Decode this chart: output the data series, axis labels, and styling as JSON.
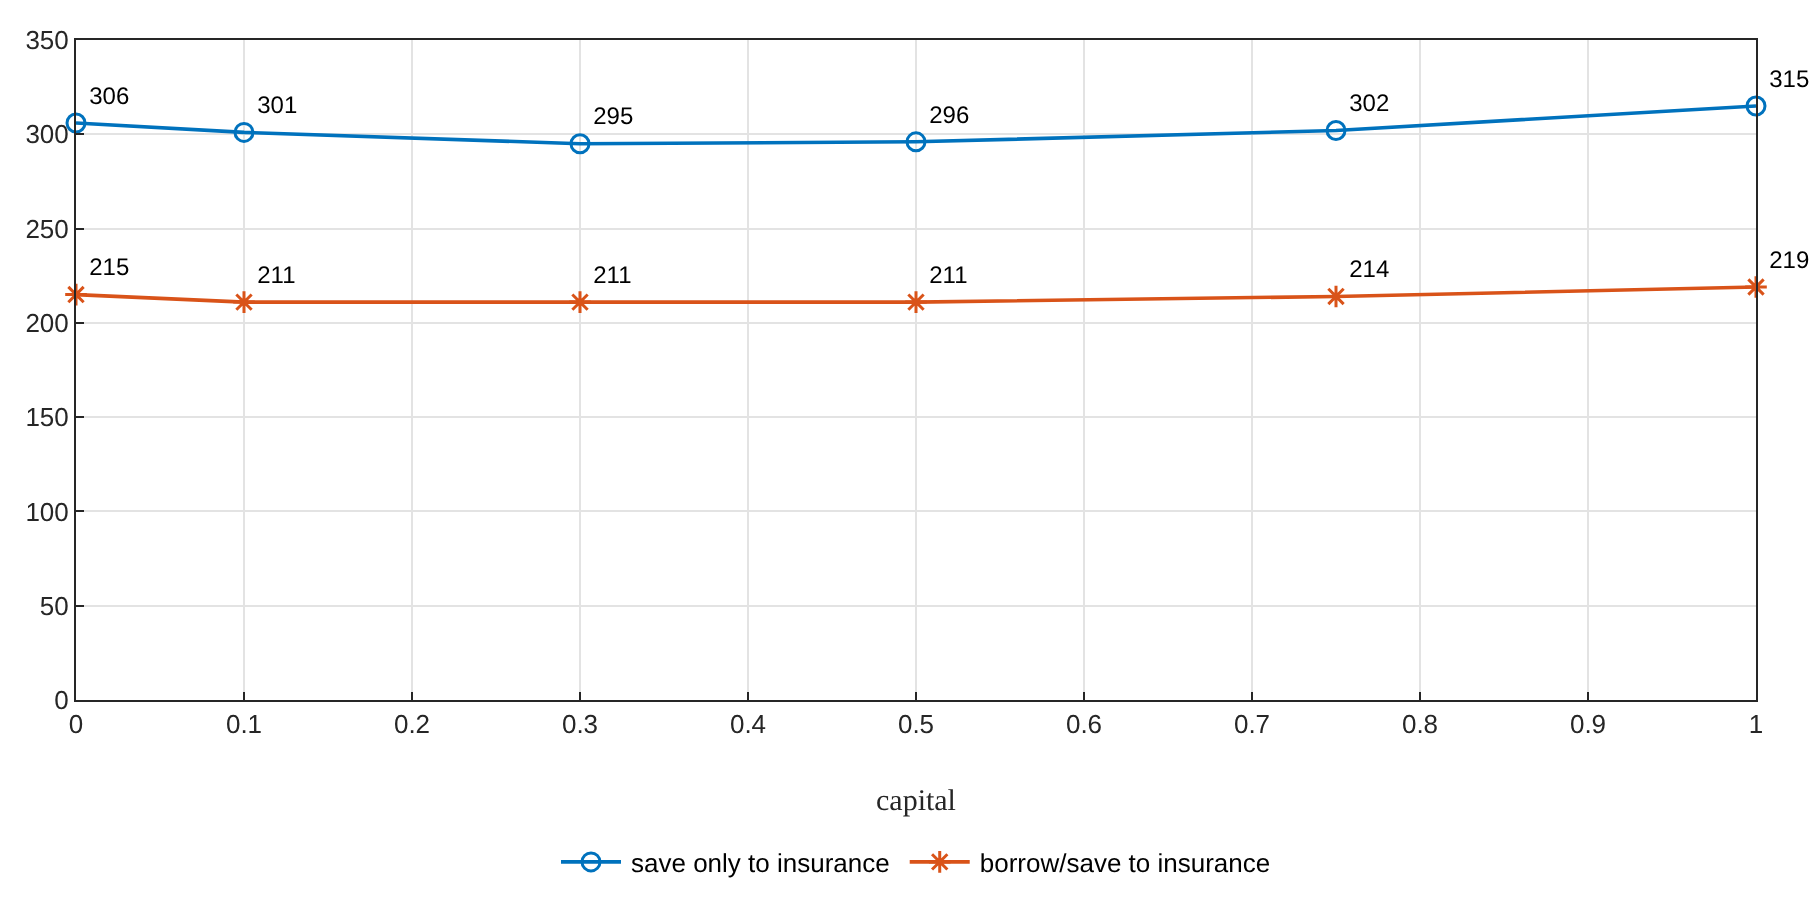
{
  "chart_data": {
    "type": "line",
    "xlabel": "capital",
    "x": [
      0,
      0.1,
      0.3,
      0.5,
      0.75,
      1
    ],
    "series": [
      {
        "name": "save only to insurance",
        "color": "#0072bd",
        "marker": "circle",
        "values": [
          306,
          301,
          295,
          296,
          302,
          315
        ]
      },
      {
        "name": "borrow/save to insurance",
        "color": "#d95319",
        "marker": "cross",
        "values": [
          215,
          211,
          211,
          211,
          214,
          219
        ]
      }
    ],
    "xlim": [
      0,
      1
    ],
    "xticks": [
      0,
      0.1,
      0.2,
      0.3,
      0.4,
      0.5,
      0.6,
      0.7,
      0.8,
      0.9,
      1
    ],
    "ylim": [
      0,
      350
    ],
    "yticks": [
      0,
      50,
      100,
      150,
      200,
      250,
      300,
      350
    ],
    "grid": true,
    "legend": "bottom",
    "data_labels": true,
    "line_style": "solid"
  }
}
